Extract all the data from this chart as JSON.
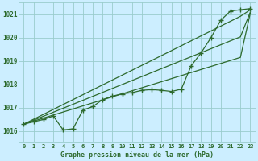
{
  "title": "Graphe pression niveau de la mer (hPa)",
  "background_color": "#cceeff",
  "grid_color": "#99cccc",
  "line_color": "#2d6a2d",
  "x_labels": [
    "0",
    "1",
    "2",
    "3",
    "4",
    "5",
    "6",
    "7",
    "8",
    "9",
    "10",
    "11",
    "12",
    "13",
    "14",
    "15",
    "16",
    "17",
    "18",
    "19",
    "20",
    "21",
    "22",
    "23"
  ],
  "ylim": [
    1015.5,
    1021.5
  ],
  "yticks": [
    1016,
    1017,
    1018,
    1019,
    1020,
    1021
  ],
  "xlim": [
    -0.5,
    23.5
  ],
  "hours": [
    0,
    1,
    2,
    3,
    4,
    5,
    6,
    7,
    8,
    9,
    10,
    11,
    12,
    13,
    14,
    15,
    16,
    17,
    18,
    19,
    20,
    21,
    22,
    23
  ],
  "marked_series": [
    1016.3,
    1016.4,
    1016.5,
    1016.65,
    1016.05,
    1016.1,
    1016.9,
    1017.05,
    1017.35,
    1017.5,
    1017.6,
    1017.65,
    1017.75,
    1017.78,
    1017.75,
    1017.7,
    1017.8,
    1018.8,
    1019.35,
    1020.0,
    1020.75,
    1021.15,
    1021.2,
    1021.25
  ],
  "line1": [
    1016.3,
    1016.51,
    1016.72,
    1016.93,
    1017.14,
    1017.35,
    1017.56,
    1017.77,
    1017.98,
    1018.19,
    1018.4,
    1018.61,
    1018.82,
    1019.03,
    1019.24,
    1019.45,
    1019.66,
    1019.87,
    1020.08,
    1020.29,
    1020.5,
    1020.71,
    1020.92,
    1021.2
  ],
  "line2": [
    1016.3,
    1016.47,
    1016.64,
    1016.81,
    1016.98,
    1017.15,
    1017.32,
    1017.49,
    1017.66,
    1017.83,
    1018.0,
    1018.17,
    1018.34,
    1018.51,
    1018.68,
    1018.85,
    1019.02,
    1019.19,
    1019.36,
    1019.53,
    1019.7,
    1019.87,
    1020.04,
    1021.1
  ],
  "line3": [
    1016.3,
    1016.43,
    1016.56,
    1016.69,
    1016.82,
    1016.95,
    1017.08,
    1017.21,
    1017.34,
    1017.47,
    1017.6,
    1017.73,
    1017.86,
    1017.99,
    1018.12,
    1018.25,
    1018.38,
    1018.51,
    1018.64,
    1018.77,
    1018.9,
    1019.03,
    1019.16,
    1021.05
  ]
}
